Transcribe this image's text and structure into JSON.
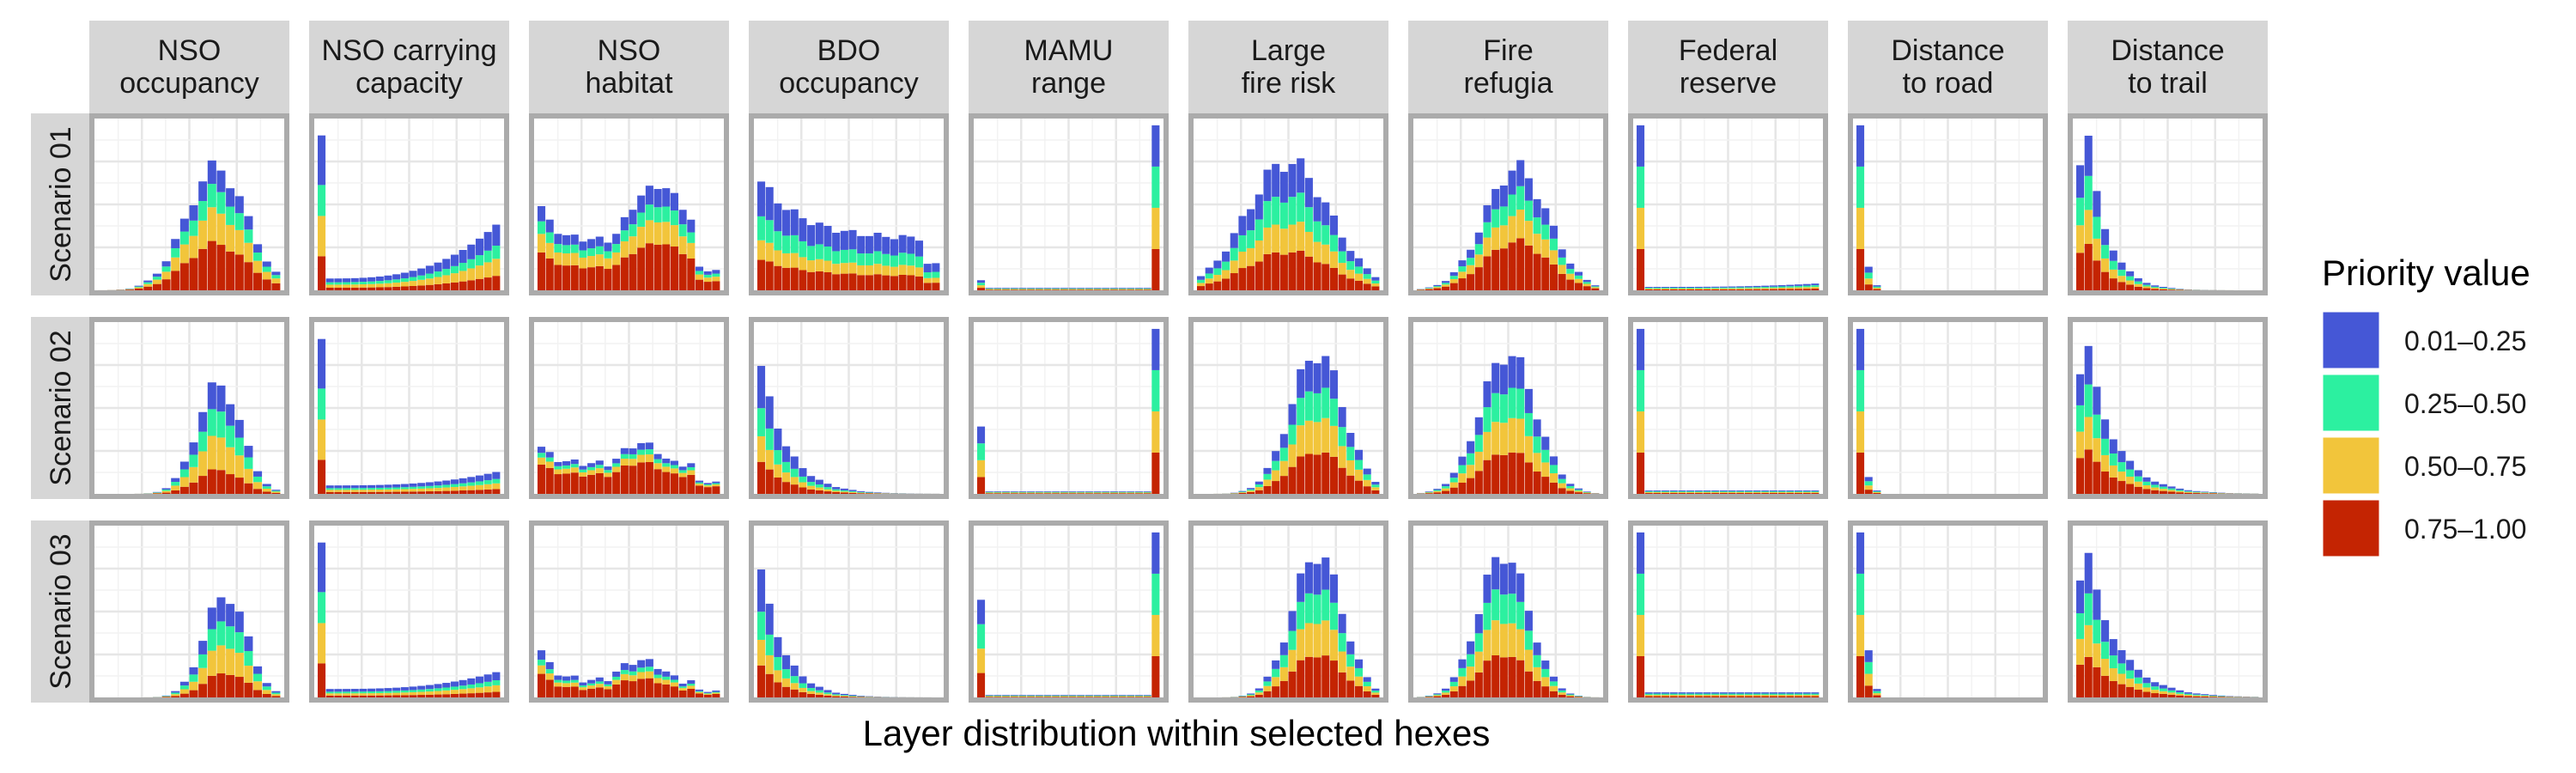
{
  "chart_data": {
    "type": "bar",
    "subtype": "stacked-histogram-facet-grid",
    "xlabel": "Layer distribution within selected hexes",
    "legend": {
      "title": "Priority value",
      "placement": "right",
      "items": [
        {
          "label": "0.01–0.25",
          "color": "#4557D6"
        },
        {
          "label": "0.25–0.50",
          "color": "#2CF0A0"
        },
        {
          "label": "0.50–0.75",
          "color": "#F2C53B"
        },
        {
          "label": "0.75–1.00",
          "color": "#C42402"
        }
      ]
    },
    "columns": [
      "NSO\noccupancy",
      "NSO carrying\ncapacity",
      "NSO\nhabitat",
      "BDO\noccupancy",
      "MAMU\nrange",
      "Large\nfire risk",
      "Fire\nrefugia",
      "Federal\nreserve",
      "Distance\nto road",
      "Distance\nto trail"
    ],
    "rows": [
      "Scenario 01",
      "Scenario 02",
      "Scenario 03"
    ],
    "stack_order": [
      "0.75–1.00",
      "0.50–0.75",
      "0.25–0.50",
      "0.01–0.25"
    ],
    "shapes": {
      "nso_occ_s1": {
        "type": "gauss",
        "bins": 20,
        "mu": 12.5,
        "sigma": 3.3,
        "max": 0.78,
        "fr": [
          0.38,
          0.26,
          0.18
        ]
      },
      "nso_occ_s2": {
        "type": "gauss",
        "bins": 20,
        "mu": 12.8,
        "sigma": 2.4,
        "max": 0.7,
        "fr": [
          0.22,
          0.3,
          0.24
        ]
      },
      "nso_occ_s3": {
        "type": "gauss",
        "bins": 20,
        "mu": 13.5,
        "sigma": 2.3,
        "max": 0.66,
        "fr": [
          0.24,
          0.28,
          0.24
        ]
      },
      "nso_cc_s1": {
        "type": "spike",
        "bins": 22,
        "spike": 0.92,
        "base": 0.07,
        "rise": 0.32,
        "fr": [
          0.22,
          0.26,
          0.2
        ]
      },
      "nso_cc_s2": {
        "type": "spike",
        "bins": 22,
        "spike": 0.92,
        "base": 0.05,
        "rise": 0.08,
        "fr": [
          0.22,
          0.26,
          0.2
        ]
      },
      "nso_cc_s3": {
        "type": "spike",
        "bins": 22,
        "spike": 0.92,
        "base": 0.05,
        "rise": 0.1,
        "fr": [
          0.22,
          0.26,
          0.2
        ]
      },
      "nso_hab_s1": {
        "type": "bimodal",
        "bins": 22,
        "edge": 0.5,
        "valley": 0.3,
        "mu": 14,
        "sigma": 4.5,
        "peak": 0.62,
        "fr": [
          0.45,
          0.22,
          0.15
        ]
      },
      "nso_hab_s2": {
        "type": "bimodal",
        "bins": 22,
        "edge": 0.28,
        "valley": 0.18,
        "mu": 12,
        "sigma": 3.5,
        "peak": 0.3,
        "fr": [
          0.62,
          0.15,
          0.1
        ]
      },
      "nso_hab_s3": {
        "type": "bimodal",
        "bins": 22,
        "edge": 0.28,
        "valley": 0.1,
        "mu": 12,
        "sigma": 3.5,
        "peak": 0.22,
        "fr": [
          0.5,
          0.18,
          0.12
        ]
      },
      "bdo_s1": {
        "type": "decay",
        "bins": 22,
        "start": 0.68,
        "floor": 0.32,
        "rate": 0.2,
        "fr": [
          0.28,
          0.18,
          0.22
        ]
      },
      "bdo_s2": {
        "type": "decay",
        "bins": 22,
        "start": 0.8,
        "floor": 0.0,
        "rate": 0.32,
        "fr": [
          0.25,
          0.2,
          0.22
        ]
      },
      "bdo_s3": {
        "type": "decay",
        "bins": 22,
        "start": 0.8,
        "floor": 0.0,
        "rate": 0.36,
        "fr": [
          0.25,
          0.2,
          0.22
        ]
      },
      "mamu_s1": {
        "type": "ends",
        "bins": 22,
        "left": 0.06,
        "right": 0.98,
        "fr": [
          0.25,
          0.25,
          0.25
        ]
      },
      "mamu_s2": {
        "type": "ends",
        "bins": 22,
        "left": 0.4,
        "right": 0.98,
        "fr": [
          0.25,
          0.25,
          0.25
        ]
      },
      "mamu_s3": {
        "type": "ends",
        "bins": 22,
        "left": 0.58,
        "right": 0.98,
        "fr": [
          0.25,
          0.25,
          0.25
        ]
      },
      "fire_s1": {
        "type": "gauss",
        "bins": 22,
        "mu": 10.5,
        "sigma": 5.0,
        "max": 0.82,
        "fr": [
          0.3,
          0.22,
          0.22
        ]
      },
      "fire_s2": {
        "type": "gauss",
        "bins": 22,
        "mu": 14.0,
        "sigma": 3.2,
        "max": 0.9,
        "fr": [
          0.3,
          0.25,
          0.22
        ]
      },
      "fire_s3": {
        "type": "gauss",
        "bins": 22,
        "mu": 14.0,
        "sigma": 3.0,
        "max": 0.92,
        "fr": [
          0.3,
          0.25,
          0.22
        ]
      },
      "refugia_s1": {
        "type": "gauss",
        "bins": 22,
        "mu": 11.5,
        "sigma": 3.8,
        "max": 0.78,
        "fr": [
          0.4,
          0.22,
          0.18
        ]
      },
      "refugia_s2": {
        "type": "gauss",
        "bins": 22,
        "mu": 10.5,
        "sigma": 3.3,
        "max": 0.9,
        "fr": [
          0.3,
          0.25,
          0.22
        ]
      },
      "refugia_s3": {
        "type": "gauss",
        "bins": 22,
        "mu": 10.0,
        "sigma": 3.0,
        "max": 0.92,
        "fr": [
          0.3,
          0.25,
          0.22
        ]
      },
      "fedres_s1": {
        "type": "spike",
        "bins": 22,
        "spike": 0.98,
        "base": 0.02,
        "rise": 0.02,
        "fr": [
          0.25,
          0.25,
          0.25
        ]
      },
      "fedres_s2": {
        "type": "spike",
        "bins": 22,
        "spike": 0.98,
        "base": 0.02,
        "rise": 0.0,
        "fr": [
          0.25,
          0.25,
          0.25
        ]
      },
      "fedres_s3": {
        "type": "spike",
        "bins": 22,
        "spike": 0.98,
        "base": 0.03,
        "rise": 0.0,
        "fr": [
          0.25,
          0.25,
          0.25
        ]
      },
      "road_s1": {
        "type": "first",
        "bins": 22,
        "first": 0.98,
        "second": 0.14,
        "third": 0.03,
        "fr": [
          0.25,
          0.25,
          0.25
        ]
      },
      "road_s2": {
        "type": "first",
        "bins": 22,
        "first": 0.98,
        "second": 0.1,
        "third": 0.02,
        "fr": [
          0.25,
          0.25,
          0.25
        ]
      },
      "road_s3": {
        "type": "first",
        "bins": 22,
        "first": 0.98,
        "second": 0.28,
        "third": 0.05,
        "fr": [
          0.25,
          0.25,
          0.25
        ]
      },
      "trail_s1": {
        "type": "trail",
        "bins": 22,
        "peak": 0.92,
        "rate": 0.42,
        "fr": [
          0.3,
          0.22,
          0.22
        ]
      },
      "trail_s2": {
        "type": "trail",
        "bins": 22,
        "peak": 0.88,
        "rate": 0.3,
        "fr": [
          0.3,
          0.22,
          0.22
        ]
      },
      "trail_s3": {
        "type": "trail",
        "bins": 22,
        "peak": 0.86,
        "rate": 0.27,
        "fr": [
          0.28,
          0.22,
          0.22
        ]
      }
    },
    "grid": [
      [
        "nso_occ_s1",
        "nso_cc_s1",
        "nso_hab_s1",
        "bdo_s1",
        "mamu_s1",
        "fire_s1",
        "refugia_s1",
        "fedres_s1",
        "road_s1",
        "trail_s1"
      ],
      [
        "nso_occ_s2",
        "nso_cc_s2",
        "nso_hab_s2",
        "bdo_s2",
        "mamu_s2",
        "fire_s2",
        "refugia_s2",
        "fedres_s2",
        "road_s2",
        "trail_s2"
      ],
      [
        "nso_occ_s3",
        "nso_cc_s3",
        "nso_hab_s3",
        "bdo_s3",
        "mamu_s3",
        "fire_s3",
        "refugia_s3",
        "fedres_s3",
        "road_s3",
        "trail_s3"
      ]
    ],
    "grid_lines": true
  }
}
